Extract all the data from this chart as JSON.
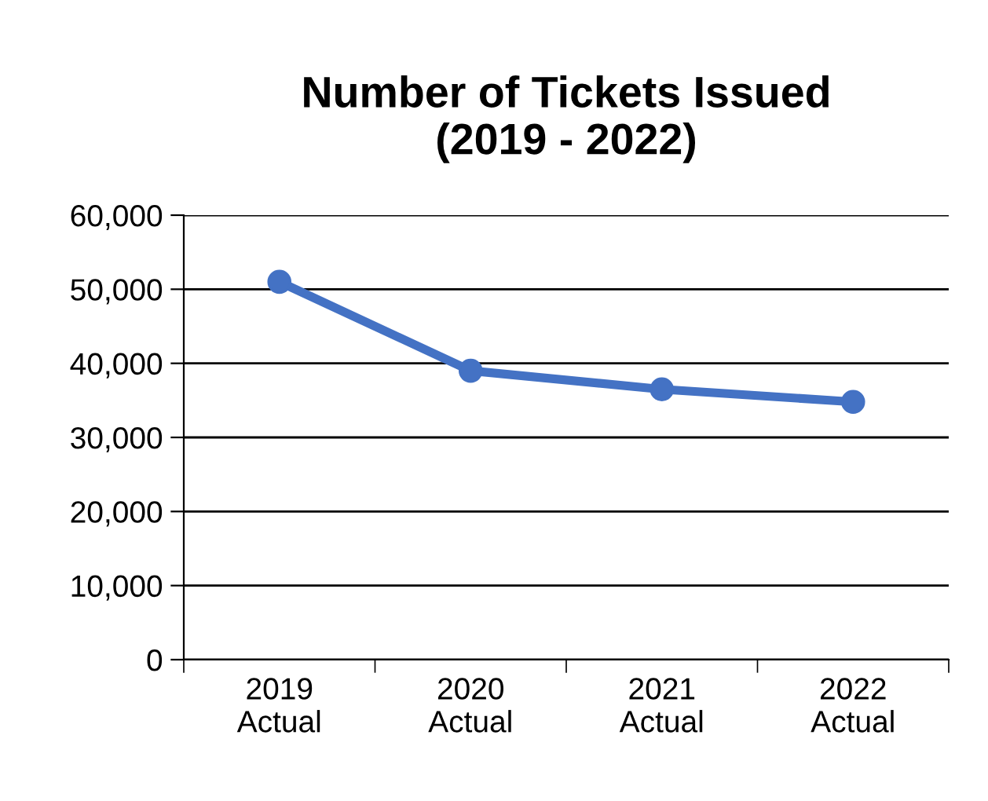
{
  "chart_data": {
    "type": "line",
    "title": "Number of Tickets Issued\n(2019 - 2022)",
    "categories": [
      "2019\nActual",
      "2020\nActual",
      "2021\nActual",
      "2022\nActual"
    ],
    "series": [
      {
        "color": "#4472c4",
        "values": [
          51000,
          39000,
          36500,
          34800
        ]
      }
    ],
    "ylim": [
      0,
      60000
    ],
    "yticks": [
      {
        "value": 0,
        "label": "0"
      },
      {
        "value": 10000,
        "label": "10,000"
      },
      {
        "value": 20000,
        "label": "20,000"
      },
      {
        "value": 30000,
        "label": "30,000"
      },
      {
        "value": 40000,
        "label": "40,000"
      },
      {
        "value": 50000,
        "label": "50,000"
      },
      {
        "value": 60000,
        "label": "60,000"
      }
    ],
    "grid": "y",
    "marker": "circle",
    "line_style": "solid"
  }
}
